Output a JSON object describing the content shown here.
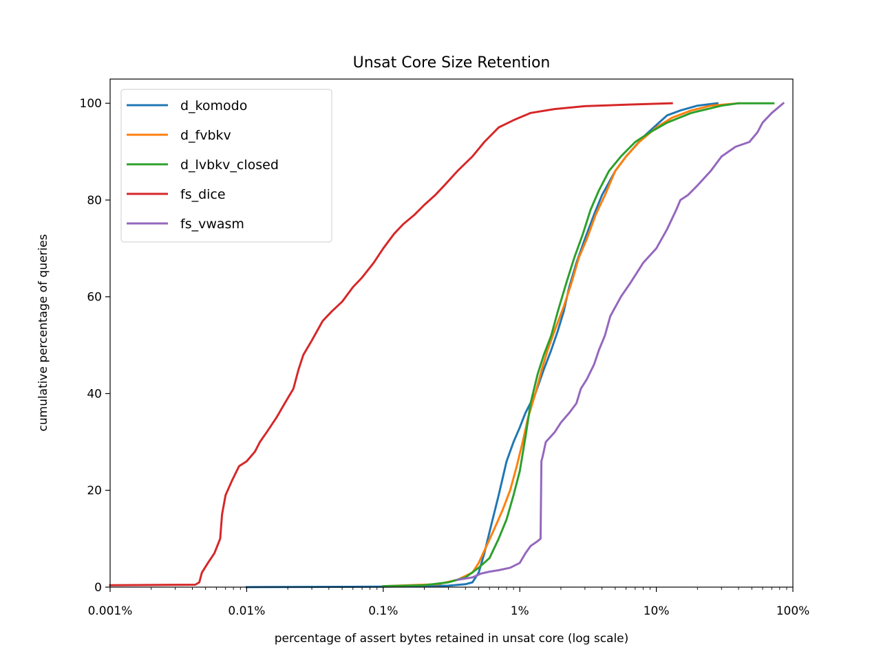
{
  "chart_data": {
    "type": "line",
    "title": "Unsat Core Size Retention",
    "xlabel": "percentage of assert bytes retained in unsat core (log scale)",
    "ylabel": "cumulative percentage of queries",
    "xscale": "log",
    "xlim": [
      0.001,
      100
    ],
    "ylim": [
      0,
      105
    ],
    "xticks": [
      {
        "value": 0.001,
        "label": "0.001%"
      },
      {
        "value": 0.01,
        "label": "0.01%"
      },
      {
        "value": 0.1,
        "label": "0.1%"
      },
      {
        "value": 1,
        "label": "1%"
      },
      {
        "value": 10,
        "label": "10%"
      },
      {
        "value": 100,
        "label": "100%"
      }
    ],
    "yticks": [
      {
        "value": 0,
        "label": "0"
      },
      {
        "value": 20,
        "label": "20"
      },
      {
        "value": 40,
        "label": "40"
      },
      {
        "value": 60,
        "label": "60"
      },
      {
        "value": 80,
        "label": "80"
      },
      {
        "value": 100,
        "label": "100"
      }
    ],
    "grid": false,
    "legend_position": "upper-left",
    "series": [
      {
        "name": "d_komodo",
        "color": "#1f77b4",
        "points": [
          [
            0.01,
            0
          ],
          [
            0.1,
            0.1
          ],
          [
            0.3,
            0.3
          ],
          [
            0.4,
            0.6
          ],
          [
            0.45,
            1
          ],
          [
            0.5,
            3
          ],
          [
            0.55,
            7
          ],
          [
            0.62,
            13
          ],
          [
            0.7,
            19
          ],
          [
            0.8,
            26
          ],
          [
            0.9,
            30
          ],
          [
            1.0,
            33
          ],
          [
            1.1,
            36
          ],
          [
            1.3,
            40
          ],
          [
            1.5,
            45
          ],
          [
            1.7,
            49
          ],
          [
            1.9,
            53
          ],
          [
            2.1,
            57
          ],
          [
            2.3,
            62
          ],
          [
            2.6,
            67
          ],
          [
            3.0,
            72
          ],
          [
            3.5,
            77
          ],
          [
            4.0,
            81
          ],
          [
            5.0,
            86
          ],
          [
            6.0,
            89
          ],
          [
            8.0,
            93
          ],
          [
            10,
            95.5
          ],
          [
            12,
            97.5
          ],
          [
            15,
            98.5
          ],
          [
            20,
            99.5
          ],
          [
            28,
            100
          ]
        ]
      },
      {
        "name": "d_fvbkv",
        "color": "#ff7f0e",
        "points": [
          [
            0.1,
            0.2
          ],
          [
            0.25,
            0.6
          ],
          [
            0.35,
            1.5
          ],
          [
            0.45,
            3
          ],
          [
            0.5,
            5
          ],
          [
            0.56,
            8
          ],
          [
            0.65,
            12
          ],
          [
            0.75,
            16
          ],
          [
            0.85,
            20
          ],
          [
            0.95,
            25
          ],
          [
            1.05,
            30
          ],
          [
            1.15,
            35
          ],
          [
            1.3,
            40
          ],
          [
            1.45,
            45
          ],
          [
            1.6,
            49
          ],
          [
            1.8,
            53
          ],
          [
            2.1,
            58
          ],
          [
            2.4,
            63
          ],
          [
            2.7,
            68
          ],
          [
            3.1,
            72
          ],
          [
            3.6,
            77
          ],
          [
            4.2,
            81
          ],
          [
            5.0,
            86
          ],
          [
            6.0,
            89
          ],
          [
            7.5,
            92
          ],
          [
            10,
            95
          ],
          [
            13,
            97
          ],
          [
            18,
            98.5
          ],
          [
            25,
            99.5
          ],
          [
            40,
            100
          ]
        ]
      },
      {
        "name": "d_lvbkv_closed",
        "color": "#2ca02c",
        "points": [
          [
            0.1,
            0.2
          ],
          [
            0.2,
            0.4
          ],
          [
            0.3,
            1
          ],
          [
            0.4,
            2
          ],
          [
            0.5,
            4
          ],
          [
            0.6,
            6
          ],
          [
            0.7,
            10
          ],
          [
            0.8,
            14
          ],
          [
            0.9,
            19
          ],
          [
            1.0,
            24
          ],
          [
            1.1,
            31
          ],
          [
            1.2,
            38
          ],
          [
            1.35,
            44
          ],
          [
            1.5,
            48
          ],
          [
            1.7,
            52
          ],
          [
            1.9,
            57
          ],
          [
            2.2,
            63
          ],
          [
            2.5,
            68
          ],
          [
            2.9,
            73
          ],
          [
            3.3,
            78
          ],
          [
            3.8,
            82
          ],
          [
            4.5,
            86
          ],
          [
            5.5,
            89
          ],
          [
            7.0,
            92
          ],
          [
            9.0,
            94
          ],
          [
            12,
            96
          ],
          [
            18,
            98
          ],
          [
            30,
            99.5
          ],
          [
            40,
            100
          ],
          [
            72,
            100
          ]
        ]
      },
      {
        "name": "fs_dice",
        "color": "#d62728",
        "points": [
          [
            0.001,
            0.4
          ],
          [
            0.0042,
            0.5
          ],
          [
            0.0045,
            1
          ],
          [
            0.0047,
            3
          ],
          [
            0.0052,
            5
          ],
          [
            0.0058,
            7
          ],
          [
            0.0064,
            10
          ],
          [
            0.0066,
            15
          ],
          [
            0.007,
            19
          ],
          [
            0.0078,
            22
          ],
          [
            0.0088,
            25
          ],
          [
            0.01,
            26
          ],
          [
            0.0115,
            28
          ],
          [
            0.0125,
            30
          ],
          [
            0.014,
            32
          ],
          [
            0.0165,
            35
          ],
          [
            0.019,
            38
          ],
          [
            0.022,
            41
          ],
          [
            0.024,
            45
          ],
          [
            0.026,
            48
          ],
          [
            0.03,
            51
          ],
          [
            0.036,
            55
          ],
          [
            0.042,
            57
          ],
          [
            0.05,
            59
          ],
          [
            0.06,
            62
          ],
          [
            0.07,
            64
          ],
          [
            0.085,
            67
          ],
          [
            0.1,
            70
          ],
          [
            0.12,
            73
          ],
          [
            0.14,
            75
          ],
          [
            0.17,
            77
          ],
          [
            0.2,
            79
          ],
          [
            0.24,
            81
          ],
          [
            0.28,
            83
          ],
          [
            0.35,
            86
          ],
          [
            0.45,
            89
          ],
          [
            0.55,
            92
          ],
          [
            0.7,
            95
          ],
          [
            0.9,
            96.5
          ],
          [
            1.2,
            98
          ],
          [
            1.8,
            98.8
          ],
          [
            3.0,
            99.4
          ],
          [
            6.0,
            99.7
          ],
          [
            13,
            100
          ]
        ]
      },
      {
        "name": "fs_vwasm",
        "color": "#9467bd",
        "points": [
          [
            0.35,
            1.5
          ],
          [
            0.45,
            2
          ],
          [
            0.52,
            2.8
          ],
          [
            0.6,
            3.2
          ],
          [
            0.7,
            3.5
          ],
          [
            0.85,
            4
          ],
          [
            1.0,
            5
          ],
          [
            1.1,
            7
          ],
          [
            1.2,
            8.5
          ],
          [
            1.35,
            9.5
          ],
          [
            1.42,
            10
          ],
          [
            1.44,
            26
          ],
          [
            1.47,
            27
          ],
          [
            1.55,
            30
          ],
          [
            1.8,
            32
          ],
          [
            2.0,
            34
          ],
          [
            2.3,
            36
          ],
          [
            2.6,
            38
          ],
          [
            2.8,
            41
          ],
          [
            3.1,
            43
          ],
          [
            3.5,
            46
          ],
          [
            3.8,
            49
          ],
          [
            4.2,
            52
          ],
          [
            4.6,
            56
          ],
          [
            5.5,
            60
          ],
          [
            6.5,
            63
          ],
          [
            8.0,
            67
          ],
          [
            10,
            70
          ],
          [
            12,
            74
          ],
          [
            14,
            78
          ],
          [
            15,
            80
          ],
          [
            17,
            81
          ],
          [
            20,
            83
          ],
          [
            25,
            86
          ],
          [
            30,
            89
          ],
          [
            38,
            91
          ],
          [
            48,
            92
          ],
          [
            55,
            94
          ],
          [
            60,
            96
          ],
          [
            70,
            98
          ],
          [
            85,
            100
          ]
        ]
      }
    ]
  }
}
